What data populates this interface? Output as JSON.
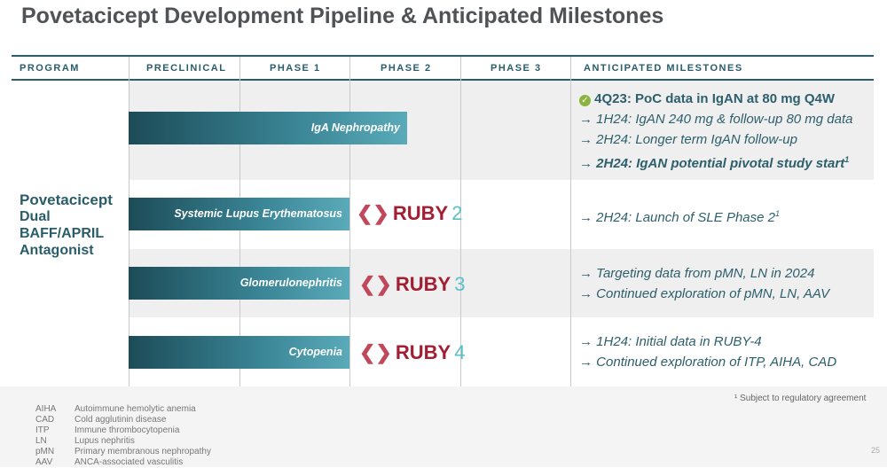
{
  "title": "Povetacicept Development Pipeline & Anticipated Milestones",
  "headers": [
    "PROGRAM",
    "PRECLINICAL",
    "PHASE 1",
    "PHASE 2",
    "PHASE 3",
    "ANTICIPATED MILESTONES"
  ],
  "program": {
    "name": "Povetacicept",
    "line2": "Dual",
    "line3": "BAFF/APRIL",
    "line4": "Antagonist"
  },
  "bars": [
    "IgA Nephropathy",
    "Systemic Lupus Erythematosus",
    "Glomerulonephritis",
    "Cytopenia"
  ],
  "trials": [
    {
      "name": "RUBY",
      "num": "2"
    },
    {
      "name": "RUBY",
      "num": "3"
    },
    {
      "name": "RUBY",
      "num": "4"
    }
  ],
  "milestones": {
    "iga": [
      "4Q23: PoC data in IgAN at 80 mg Q4W",
      "1H24: IgAN 240 mg & follow-up 80 mg data",
      "2H24: Longer term IgAN follow-up",
      "2H24: IgAN potential pivotal study start"
    ],
    "sle": [
      "2H24: Launch of SLE Phase 2"
    ],
    "glom": [
      "Targeting data from pMN, LN in 2024",
      "Continued exploration of pMN, LN, AAV"
    ],
    "cyto": [
      "1H24: Initial data in RUBY-4",
      "Continued exploration of ITP, AIHA, CAD"
    ]
  },
  "arrow": "→",
  "sup": "1",
  "footnote": "¹ Subject to regulatory agreement",
  "abbreviations": [
    [
      "AIHA",
      "Autoimmune hemolytic anemia"
    ],
    [
      "CAD",
      "Cold agglutinin disease"
    ],
    [
      "ITP",
      "Immune thrombocytopenia"
    ],
    [
      "LN",
      "Lupus nephritis"
    ],
    [
      "pMN",
      "Primary membranous nephropathy"
    ],
    [
      "AAV",
      "ANCA-associated vasculitis"
    ]
  ],
  "page": "25",
  "colors": {
    "teal": "#2a5d6a",
    "ruby": "#a21f33",
    "check": "#8cb33f"
  }
}
